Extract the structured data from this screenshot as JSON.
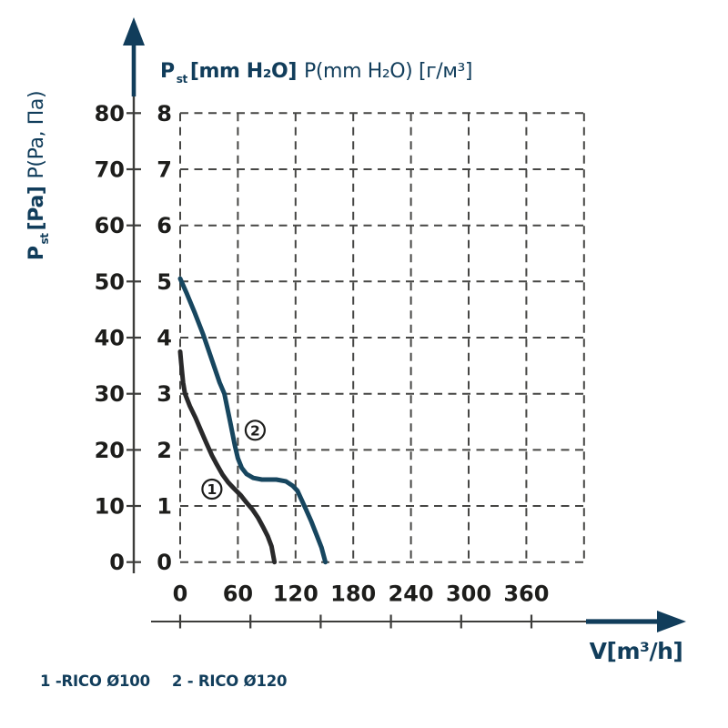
{
  "figure": {
    "top_axis_title": {
      "p": "P",
      "p_sub": "st",
      "bold_unit": "[mm H₂O]",
      "regular": "P(mm H₂O) [г/м³]"
    },
    "left_axis_title": {
      "p": "P",
      "p_sub": "st",
      "bold_unit": "[Pa]",
      "regular": "P(Pa, Па)"
    },
    "flow_axis_title": "V[m³/h]",
    "legend_items": [
      "1 -RICO Ø100",
      "2 - RICO Ø120"
    ]
  },
  "chart_data": {
    "type": "line",
    "title": "P st [mm H₂O] P(mm H₂O) [г/м³]",
    "xlabel": "V[m³/h]",
    "ylabel_outer": "P st [Pa] P(Pa, Па)",
    "x_unit": "m³/h",
    "y_unit_inner": "mm H₂O",
    "y_unit_outer": "Pa",
    "xlim": [
      0,
      420
    ],
    "ylim_mm": [
      0,
      8
    ],
    "ylim_pa": [
      0,
      80
    ],
    "x_ticks": [
      0,
      60,
      120,
      180,
      240,
      300,
      360
    ],
    "y_ticks_mm": [
      8,
      7,
      6,
      5,
      4,
      3,
      2,
      1,
      0
    ],
    "y_ticks_pa": [
      80,
      70,
      60,
      50,
      40,
      30,
      20,
      10,
      0
    ],
    "grid": "dashed",
    "legend_position": "bottom-left",
    "series": [
      {
        "id": "1",
        "name": "RICO Ø100",
        "color": "#29292a",
        "points_v_mm": [
          [
            0,
            3.75
          ],
          [
            1,
            3.55
          ],
          [
            3,
            3.2
          ],
          [
            5,
            3.0
          ],
          [
            10,
            2.78
          ],
          [
            16,
            2.57
          ],
          [
            22,
            2.33
          ],
          [
            27,
            2.13
          ],
          [
            33,
            1.9
          ],
          [
            38,
            1.74
          ],
          [
            44,
            1.56
          ],
          [
            50,
            1.42
          ],
          [
            56,
            1.31
          ],
          [
            63,
            1.19
          ],
          [
            69,
            1.06
          ],
          [
            75,
            0.94
          ],
          [
            81,
            0.79
          ],
          [
            86,
            0.63
          ],
          [
            91,
            0.46
          ],
          [
            95,
            0.28
          ],
          [
            98,
            0
          ]
        ]
      },
      {
        "id": "2",
        "name": "RICO Ø120",
        "color": "#17465f",
        "points_v_mm": [
          [
            0,
            5.05
          ],
          [
            7,
            4.78
          ],
          [
            15,
            4.45
          ],
          [
            24,
            4.05
          ],
          [
            33,
            3.6
          ],
          [
            41,
            3.2
          ],
          [
            46,
            3.0
          ],
          [
            52,
            2.5
          ],
          [
            57,
            2.07
          ],
          [
            60,
            1.85
          ],
          [
            64,
            1.68
          ],
          [
            69,
            1.57
          ],
          [
            76,
            1.5
          ],
          [
            85,
            1.47
          ],
          [
            100,
            1.47
          ],
          [
            110,
            1.44
          ],
          [
            117,
            1.36
          ],
          [
            122,
            1.27
          ],
          [
            130,
            0.97
          ],
          [
            136,
            0.74
          ],
          [
            142,
            0.48
          ],
          [
            147,
            0.26
          ],
          [
            151,
            0
          ]
        ]
      }
    ],
    "annotations": [
      {
        "label": "1",
        "v": 33,
        "p_mm": 1.3
      },
      {
        "label": "2",
        "v": 78,
        "p_mm": 2.35
      }
    ]
  },
  "colors": {
    "navy": "#113d5b",
    "black_text": "#1d1d1b",
    "grid": "#464644",
    "axis": "#3d3d3b"
  }
}
